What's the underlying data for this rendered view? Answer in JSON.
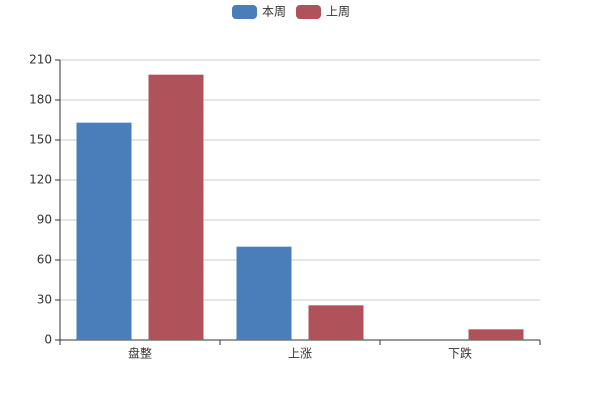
{
  "chart_data": {
    "type": "bar",
    "categories": [
      "盘整",
      "上涨",
      "下跌"
    ],
    "series": [
      {
        "name": "本周",
        "color": "#4a7ebb",
        "values": [
          163,
          70,
          0
        ]
      },
      {
        "name": "上周",
        "color": "#b0525a",
        "values": [
          199,
          26,
          8
        ]
      }
    ],
    "ylim": [
      0,
      210
    ],
    "yticks": [
      0,
      30,
      60,
      90,
      120,
      150,
      180,
      210
    ],
    "grid": true,
    "legend": "top"
  }
}
